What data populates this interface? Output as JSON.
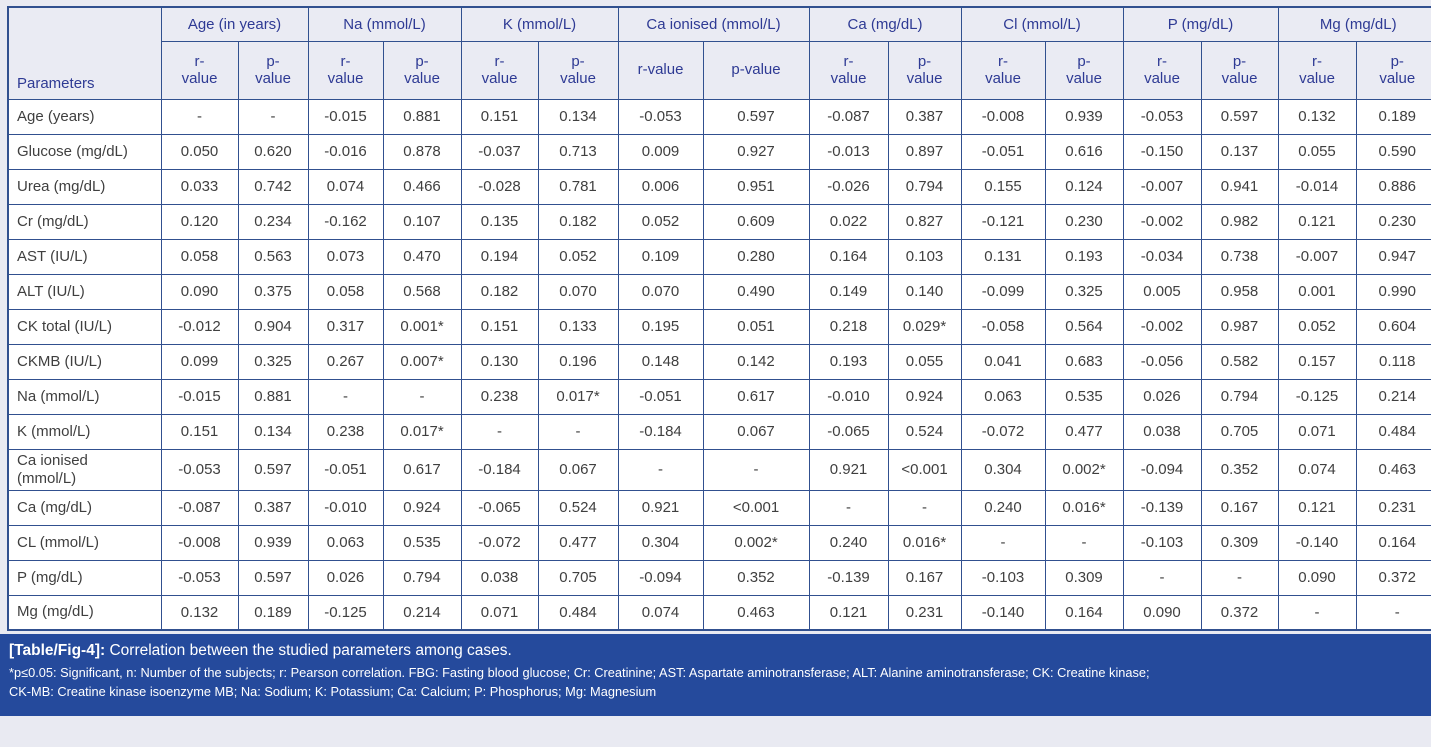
{
  "colors": {
    "page_background": "#e9eaf2",
    "grid_line": "#31508f",
    "header_background": "#eaebf3",
    "header_text": "#2e3a94",
    "body_text": "#3f3f3f",
    "footer_background": "#254a9c",
    "footer_text": "#ffffff"
  },
  "table": {
    "corner_label": "Parameters",
    "groups": [
      {
        "label": "Age (in years)",
        "sub": [
          "r-\nvalue",
          "p-\nvalue"
        ]
      },
      {
        "label": "Na (mmol/L)",
        "sub": [
          "r-\nvalue",
          "p-\nvalue"
        ]
      },
      {
        "label": "K (mmol/L)",
        "sub": [
          "r-\nvalue",
          "p-\nvalue"
        ]
      },
      {
        "label": "Ca ionised (mmol/L)",
        "sub": [
          "r-value",
          "p-value"
        ]
      },
      {
        "label": "Ca (mg/dL)",
        "sub": [
          "r-\nvalue",
          "p-\nvalue"
        ]
      },
      {
        "label": "Cl (mmol/L)",
        "sub": [
          "r-\nvalue",
          "p-\nvalue"
        ]
      },
      {
        "label": "P (mg/dL)",
        "sub": [
          "r-\nvalue",
          "p-\nvalue"
        ]
      },
      {
        "label": "Mg (mg/dL)",
        "sub": [
          "r-\nvalue",
          "p-\nvalue"
        ]
      }
    ],
    "rows": [
      {
        "label": "Age (years)",
        "values": [
          "-",
          "-",
          "-0.015",
          "0.881",
          "0.151",
          "0.134",
          "-0.053",
          "0.597",
          "-0.087",
          "0.387",
          "-0.008",
          "0.939",
          "-0.053",
          "0.597",
          "0.132",
          "0.189"
        ]
      },
      {
        "label": "Glucose (mg/dL)",
        "values": [
          "0.050",
          "0.620",
          "-0.016",
          "0.878",
          "-0.037",
          "0.713",
          "0.009",
          "0.927",
          "-0.013",
          "0.897",
          "-0.051",
          "0.616",
          "-0.150",
          "0.137",
          "0.055",
          "0.590"
        ]
      },
      {
        "label": "Urea (mg/dL)",
        "values": [
          "0.033",
          "0.742",
          "0.074",
          "0.466",
          "-0.028",
          "0.781",
          "0.006",
          "0.951",
          "-0.026",
          "0.794",
          "0.155",
          "0.124",
          "-0.007",
          "0.941",
          "-0.014",
          "0.886"
        ]
      },
      {
        "label": "Cr (mg/dL)",
        "values": [
          "0.120",
          "0.234",
          "-0.162",
          "0.107",
          "0.135",
          "0.182",
          "0.052",
          "0.609",
          "0.022",
          "0.827",
          "-0.121",
          "0.230",
          "-0.002",
          "0.982",
          "0.121",
          "0.230"
        ]
      },
      {
        "label": "AST (IU/L)",
        "values": [
          "0.058",
          "0.563",
          "0.073",
          "0.470",
          "0.194",
          "0.052",
          "0.109",
          "0.280",
          "0.164",
          "0.103",
          "0.131",
          "0.193",
          "-0.034",
          "0.738",
          "-0.007",
          "0.947"
        ]
      },
      {
        "label": "ALT (IU/L)",
        "values": [
          "0.090",
          "0.375",
          "0.058",
          "0.568",
          "0.182",
          "0.070",
          "0.070",
          "0.490",
          "0.149",
          "0.140",
          "-0.099",
          "0.325",
          "0.005",
          "0.958",
          "0.001",
          "0.990"
        ]
      },
      {
        "label": "CK total (IU/L)",
        "values": [
          "-0.012",
          "0.904",
          "0.317",
          "0.001*",
          "0.151",
          "0.133",
          "0.195",
          "0.051",
          "0.218",
          "0.029*",
          "-0.058",
          "0.564",
          "-0.002",
          "0.987",
          "0.052",
          "0.604"
        ]
      },
      {
        "label": "CKMB (IU/L)",
        "values": [
          "0.099",
          "0.325",
          "0.267",
          "0.007*",
          "0.130",
          "0.196",
          "0.148",
          "0.142",
          "0.193",
          "0.055",
          "0.041",
          "0.683",
          "-0.056",
          "0.582",
          "0.157",
          "0.118"
        ]
      },
      {
        "label": "Na (mmol/L)",
        "values": [
          "-0.015",
          "0.881",
          "-",
          "-",
          "0.238",
          "0.017*",
          "-0.051",
          "0.617",
          "-0.010",
          "0.924",
          "0.063",
          "0.535",
          "0.026",
          "0.794",
          "-0.125",
          "0.214"
        ]
      },
      {
        "label": "K (mmol/L)",
        "values": [
          "0.151",
          "0.134",
          "0.238",
          "0.017*",
          "-",
          "-",
          "-0.184",
          "0.067",
          "-0.065",
          "0.524",
          "-0.072",
          "0.477",
          "0.038",
          "0.705",
          "0.071",
          "0.484"
        ]
      },
      {
        "label": "Ca ionised\n(mmol/L)",
        "values": [
          "-0.053",
          "0.597",
          "-0.051",
          "0.617",
          "-0.184",
          "0.067",
          "-",
          "-",
          "0.921",
          "<0.001",
          "0.304",
          "0.002*",
          "-0.094",
          "0.352",
          "0.074",
          "0.463"
        ]
      },
      {
        "label": "Ca (mg/dL)",
        "values": [
          "-0.087",
          "0.387",
          "-0.010",
          "0.924",
          "-0.065",
          "0.524",
          "0.921",
          "<0.001",
          "-",
          "-",
          "0.240",
          "0.016*",
          "-0.139",
          "0.167",
          "0.121",
          "0.231"
        ]
      },
      {
        "label": "CL (mmol/L)",
        "values": [
          "-0.008",
          "0.939",
          "0.063",
          "0.535",
          "-0.072",
          "0.477",
          "0.304",
          "0.002*",
          "0.240",
          "0.016*",
          "-",
          "-",
          "-0.103",
          "0.309",
          "-0.140",
          "0.164"
        ]
      },
      {
        "label": "P (mg/dL)",
        "values": [
          "-0.053",
          "0.597",
          "0.026",
          "0.794",
          "0.038",
          "0.705",
          "-0.094",
          "0.352",
          "-0.139",
          "0.167",
          "-0.103",
          "0.309",
          "-",
          "-",
          "0.090",
          "0.372"
        ]
      },
      {
        "label": "Mg (mg/dL)",
        "values": [
          "0.132",
          "0.189",
          "-0.125",
          "0.214",
          "0.071",
          "0.484",
          "0.074",
          "0.463",
          "0.121",
          "0.231",
          "-0.140",
          "0.164",
          "0.090",
          "0.372",
          "-",
          "-"
        ]
      }
    ]
  },
  "footer": {
    "title_label": "[Table/Fig-4]:",
    "title_text": "Correlation between the studied parameters among cases.",
    "notes": [
      "*p≤0.05: Significant, n: Number of the subjects; r: Pearson correlation. FBG: Fasting blood glucose; Cr: Creatinine; AST: Aspartate aminotransferase; ALT: Alanine aminotransferase; CK: Creatine kinase;",
      "CK-MB: Creatine kinase isoenzyme MB; Na: Sodium; K: Potassium; Ca: Calcium; P: Phosphorus; Mg: Magnesium"
    ]
  }
}
